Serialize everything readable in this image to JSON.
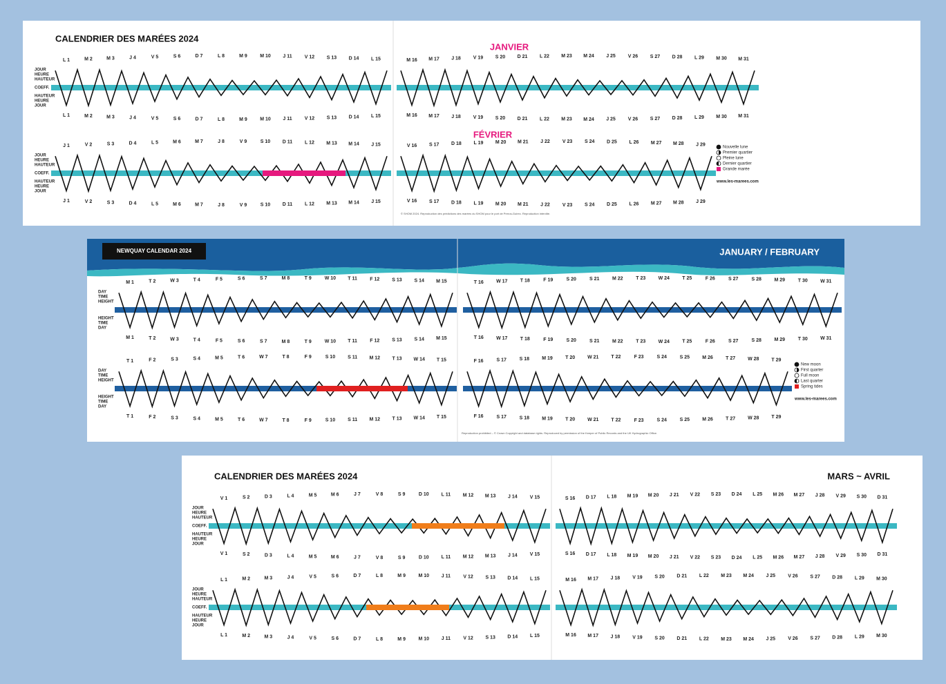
{
  "spreads": [
    {
      "title": "CALENDRIER DES MARÉES 2024",
      "headings": [
        "JANVIER",
        "FÉVRIER"
      ],
      "side_top": [
        "JOUR",
        "HEURE",
        "HAUTEUR"
      ],
      "side_band": "COEFF.",
      "side_bottom": [
        "HAUTEUR",
        "HEURE",
        "JOUR"
      ],
      "rows": [
        {
          "left": [
            "L 1",
            "M 2",
            "M 3",
            "J 4",
            "V 5",
            "S 6",
            "D 7",
            "L 8",
            "M 9",
            "M 10",
            "J 11",
            "V 12",
            "S 13",
            "D 14",
            "L 15"
          ],
          "right": [
            "M 16",
            "M 17",
            "J 18",
            "V 19",
            "S 20",
            "D 21",
            "L 22",
            "M 23",
            "M 24",
            "J 25",
            "V 26",
            "S 27",
            "D 28",
            "L 29",
            "M 30",
            "M 31"
          ]
        },
        {
          "left": [
            "J 1",
            "V 2",
            "S 3",
            "D 4",
            "L 5",
            "M 6",
            "M 7",
            "J 8",
            "V 9",
            "S 10",
            "D 11",
            "L 12",
            "M 13",
            "M 14",
            "J 15"
          ],
          "right": [
            "V 16",
            "S 17",
            "D 18",
            "L 19",
            "M 20",
            "M 21",
            "J 22",
            "V 23",
            "S 24",
            "D 25",
            "L 26",
            "M 27",
            "M 28",
            "J 29"
          ]
        }
      ],
      "legend": [
        "Nouvelle lune",
        "Premier quartier",
        "Pleine lune",
        "Dernier quartier",
        "Grande marée"
      ],
      "website": "www.les-marees.com",
      "footer": "© SHOM 2024. Reproduction des prédictions des marées du SHOM pour le port de Perros-Guirec. Reproduction interdite."
    },
    {
      "title": "NEWQUAY CALENDAR 2024",
      "headings": [
        "JANUARY / FEBRUARY"
      ],
      "side_top": [
        "DAY",
        "TIME",
        "HEIGHT"
      ],
      "side_band": "",
      "side_bottom": [
        "HEIGHT",
        "TIME",
        "DAY"
      ],
      "rows": [
        {
          "left": [
            "M 1",
            "T 2",
            "W 3",
            "T 4",
            "F 5",
            "S 6",
            "S 7",
            "M 8",
            "T 9",
            "W 10",
            "T 11",
            "F 12",
            "S 13",
            "S 14",
            "M 15"
          ],
          "right": [
            "T 16",
            "W 17",
            "T 18",
            "F 19",
            "S 20",
            "S 21",
            "M 22",
            "T 23",
            "W 24",
            "T 25",
            "F 26",
            "S 27",
            "S 28",
            "M 29",
            "T 30",
            "W 31"
          ]
        },
        {
          "left": [
            "T 1",
            "F 2",
            "S 3",
            "S 4",
            "M 5",
            "T 6",
            "W 7",
            "T 8",
            "F 9",
            "S 10",
            "S 11",
            "M 12",
            "T 13",
            "W 14",
            "T 15"
          ],
          "right": [
            "F 16",
            "S 17",
            "S 18",
            "M 19",
            "T 20",
            "W 21",
            "T 22",
            "F 23",
            "S 24",
            "S 25",
            "M 26",
            "T 27",
            "W 28",
            "T 29"
          ]
        }
      ],
      "legend": [
        "New moon",
        "First quarter",
        "Full moon",
        "Last quarter",
        "Spring tides"
      ],
      "website": "www.les-marees.com",
      "footer": "Reproduction prohibited – © Crown Copyright and database rights. Reproduced by permission of the Keeper of Public Records and the UK Hydrographic Office."
    },
    {
      "title": "CALENDRIER DES MARÉES 2024",
      "headings": [
        "MARS ~ AVRIL"
      ],
      "side_top": [
        "JOUR",
        "HEURE",
        "HAUTEUR"
      ],
      "side_band": "COEFF.",
      "side_bottom": [
        "HAUTEUR",
        "HEURE",
        "JOUR"
      ],
      "rows": [
        {
          "left": [
            "V 1",
            "S 2",
            "D 3",
            "L 4",
            "M 5",
            "M 6",
            "J 7",
            "V 8",
            "S 9",
            "D 10",
            "L 11",
            "M 12",
            "M 13",
            "J 14",
            "V 15"
          ],
          "right": [
            "S 16",
            "D 17",
            "L 18",
            "M 19",
            "M 20",
            "J 21",
            "V 22",
            "S 23",
            "D 24",
            "L 25",
            "M 26",
            "M 27",
            "J 28",
            "V 29",
            "S 30",
            "D 31"
          ]
        },
        {
          "left": [
            "L 1",
            "M 2",
            "M 3",
            "J 4",
            "V 5",
            "S 6",
            "D 7",
            "L 8",
            "M 9",
            "M 10",
            "J 11",
            "V 12",
            "S 13",
            "D 14",
            "L 15"
          ],
          "right": [
            "M 16",
            "M 17",
            "J 18",
            "V 19",
            "S 20",
            "D 21",
            "L 22",
            "M 23",
            "M 24",
            "J 25",
            "V 26",
            "S 27",
            "D 28",
            "L 29",
            "M 30"
          ]
        }
      ],
      "legend": [],
      "website": "",
      "footer": ""
    }
  ]
}
